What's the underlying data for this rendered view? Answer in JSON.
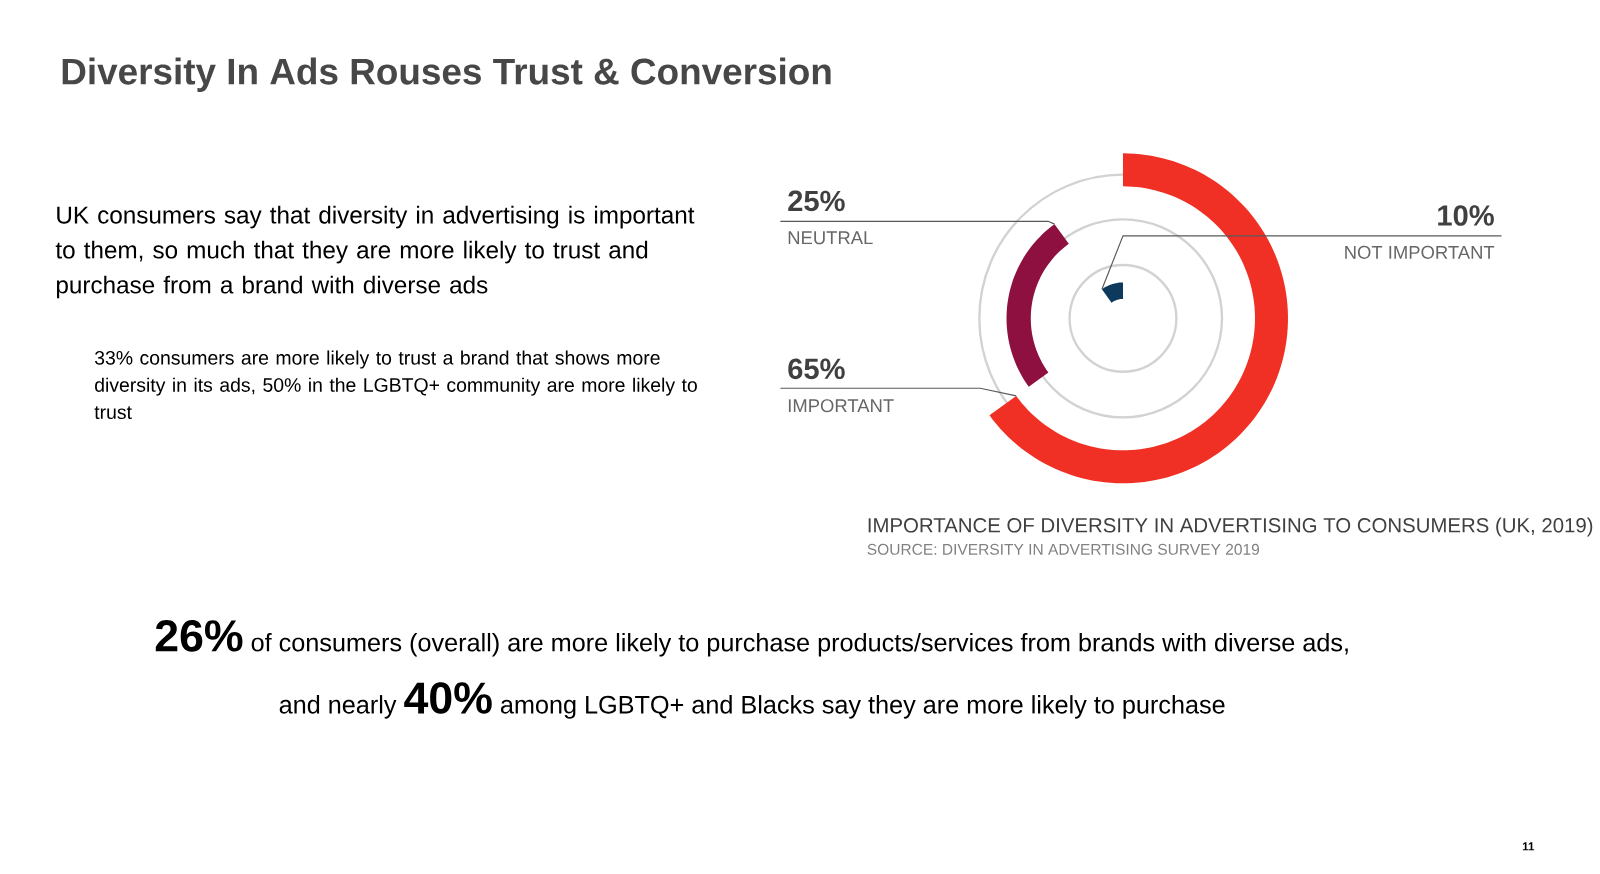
{
  "chart_data": {
    "type": "other",
    "title": "Diversity In Ads Rouses Trust & Conversion",
    "categories": [
      "IMPORTANT",
      "NEUTRAL",
      "NOT IMPORTANT"
    ],
    "values": [
      65,
      25,
      10
    ],
    "colors": [
      "#f03024",
      "#8e1040",
      "#0d3a5c"
    ],
    "value_labels": [
      "65%",
      "25%",
      "10%"
    ],
    "annotations": [
      "UK consumers say that diversity in advertising is important to them, so much that they are more likely to trust and purchase from a brand with diverse ads",
      "33% consumers are more likely to trust a brand that shows more diversity in its ads, 50% in the LGBTQ+ community are more likely to trust",
      "IMPORTANCE OF DIVERSITY IN ADVERTISING TO CONSUMERS (UK, 2019)",
      "SOURCE: DIVERSITY IN ADVERTISING SURVEY 2019",
      "26%",
      "of consumers (overall) are more likely to purchase products/services from brands with diverse ads,",
      "and nearly",
      "40%",
      "among LGBTQ+ and Blacks say they are more likely to purchase",
      "11"
    ]
  }
}
